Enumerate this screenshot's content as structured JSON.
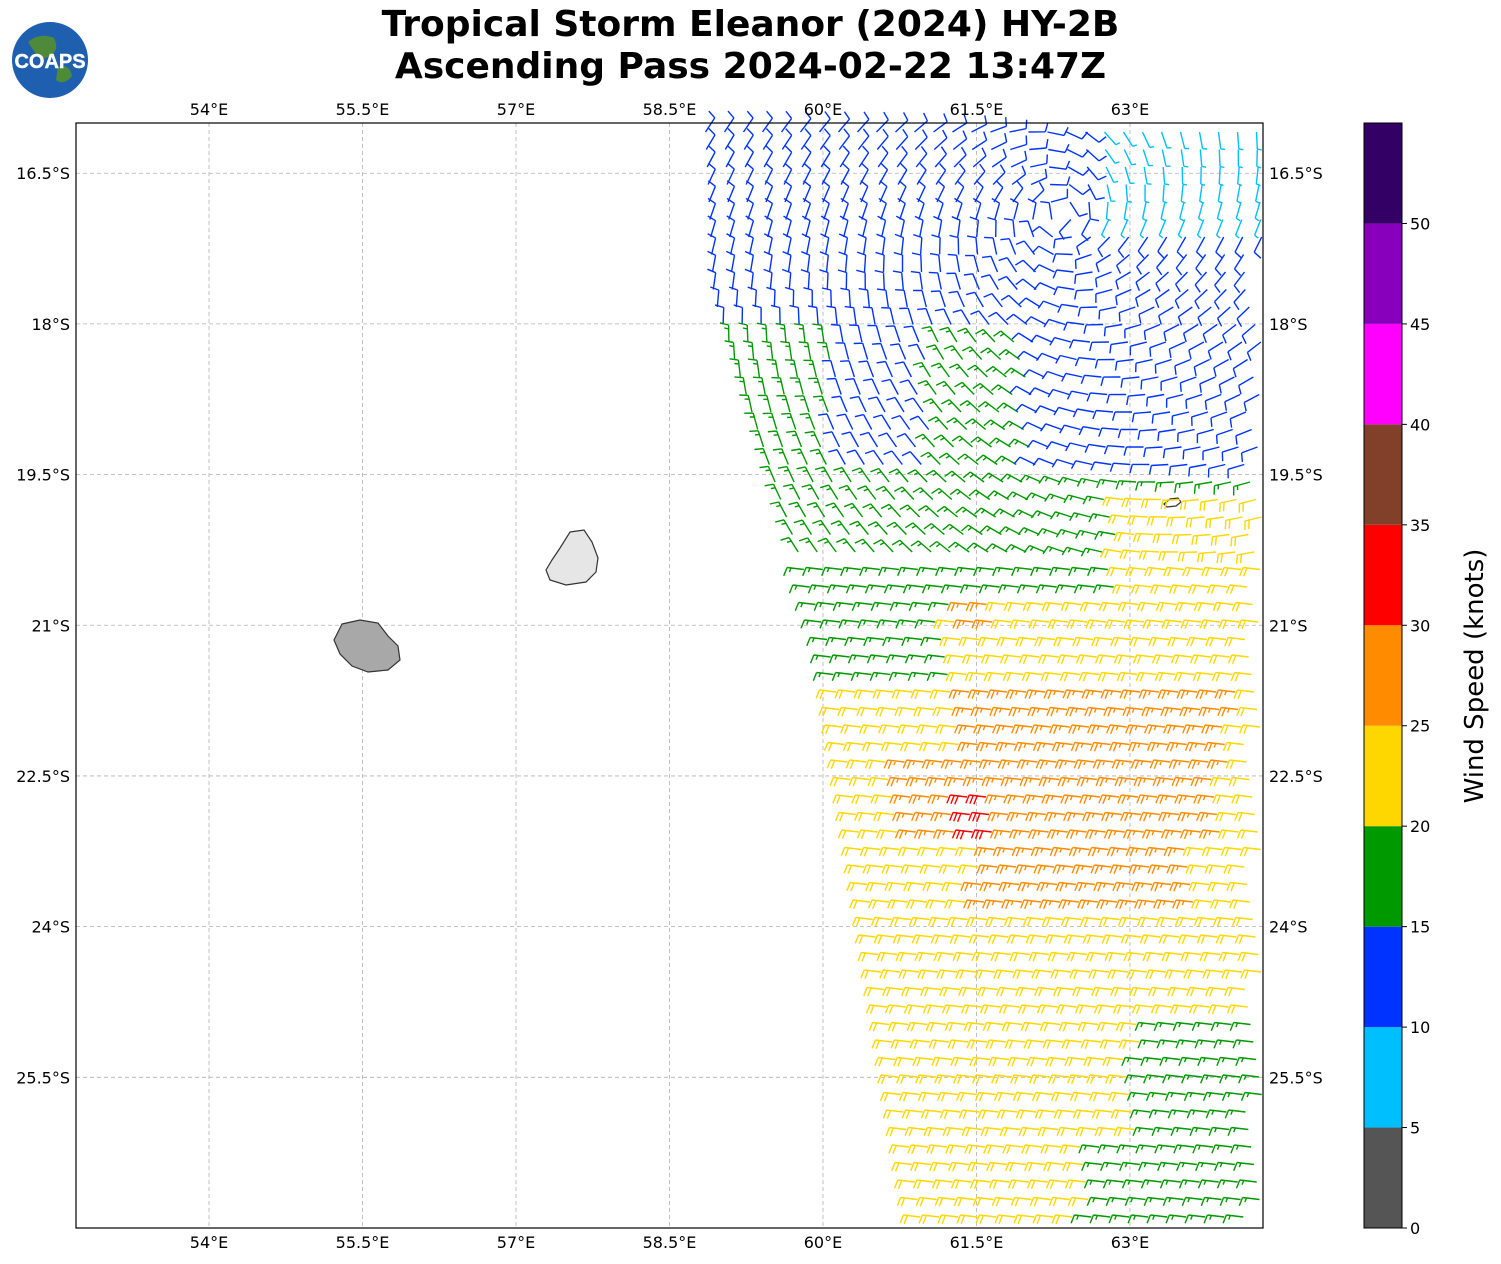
{
  "title": {
    "line1": "Tropical Storm Eleanor (2024) HY-2B",
    "line2": "Ascending Pass 2024-02-22 13:47Z"
  },
  "logo": {
    "text": "COAPS",
    "icon": "globe-icon"
  },
  "map": {
    "lon_range": [
      52.7,
      64.3
    ],
    "lat_range": [
      -27.0,
      -16.0
    ],
    "x_ticks": [
      "54°E",
      "55.5°E",
      "57°E",
      "58.5°E",
      "60°E",
      "61.5°E",
      "63°E"
    ],
    "x_tick_values": [
      54,
      55.5,
      57,
      58.5,
      60,
      61.5,
      63
    ],
    "y_ticks": [
      "16.5°S",
      "18°S",
      "19.5°S",
      "21°S",
      "22.5°S",
      "24°S",
      "25.5°S"
    ],
    "y_tick_values": [
      -16.5,
      -18,
      -19.5,
      -21,
      -22.5,
      -24,
      -25.5
    ],
    "grid": true,
    "land": [
      "Réunion",
      "Mauritius",
      "Rodrigues"
    ],
    "land_fill_colors": [
      "#999999",
      "#ffffff"
    ]
  },
  "chart_data": {
    "type": "wind-barb map",
    "variable": "Wind Speed (knots)",
    "speed_bins": [
      {
        "range": [
          0,
          5
        ],
        "color": "#555555"
      },
      {
        "range": [
          5,
          10
        ],
        "color": "#00BFFF"
      },
      {
        "range": [
          10,
          15
        ],
        "color": "#0033FF"
      },
      {
        "range": [
          15,
          20
        ],
        "color": "#009900"
      },
      {
        "range": [
          20,
          25
        ],
        "color": "#FFD700"
      },
      {
        "range": [
          25,
          30
        ],
        "color": "#FF8C00"
      },
      {
        "range": [
          30,
          35
        ],
        "color": "#FF0000"
      },
      {
        "range": [
          35,
          40
        ],
        "color": "#80402A"
      },
      {
        "range": [
          40,
          45
        ],
        "color": "#FF00FF"
      },
      {
        "range": [
          45,
          50
        ],
        "color": "#8800BB"
      },
      {
        "range": [
          50,
          55
        ],
        "color": "#330066"
      }
    ]
  },
  "colorbar": {
    "label": "Wind Speed (knots)",
    "ticks": [
      "0",
      "5",
      "10",
      "15",
      "20",
      "25",
      "30",
      "35",
      "40",
      "45",
      "50"
    ],
    "tick_values": [
      0,
      5,
      10,
      15,
      20,
      25,
      30,
      35,
      40,
      45,
      50
    ],
    "max": 55
  }
}
